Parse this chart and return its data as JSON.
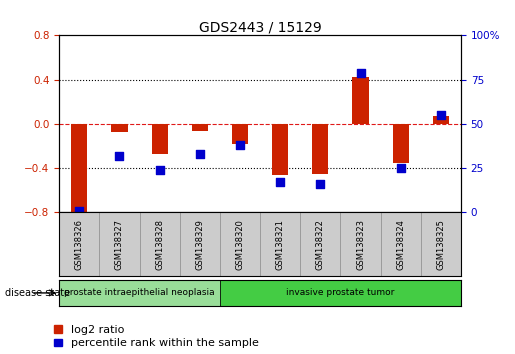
{
  "title": "GDS2443 / 15129",
  "samples": [
    "GSM138326",
    "GSM138327",
    "GSM138328",
    "GSM138329",
    "GSM138320",
    "GSM138321",
    "GSM138322",
    "GSM138323",
    "GSM138324",
    "GSM138325"
  ],
  "log2_ratio": [
    -0.82,
    -0.07,
    -0.27,
    -0.06,
    -0.18,
    -0.46,
    -0.45,
    0.42,
    -0.35,
    0.07
  ],
  "percentile_rank": [
    1,
    32,
    24,
    33,
    38,
    17,
    16,
    79,
    25,
    55
  ],
  "ylim_left": [
    -0.8,
    0.8
  ],
  "ylim_right": [
    0,
    100
  ],
  "yticks_left": [
    -0.8,
    -0.4,
    0,
    0.4,
    0.8
  ],
  "yticks_right": [
    0,
    25,
    50,
    75,
    100
  ],
  "hline_values": [
    -0.4,
    0,
    0.4
  ],
  "bar_color": "#cc2200",
  "dot_color": "#0000cc",
  "disease_groups": [
    {
      "label": "prostate intraepithelial neoplasia",
      "start": 0,
      "end": 4,
      "color": "#99dd99"
    },
    {
      "label": "invasive prostate tumor",
      "start": 4,
      "end": 10,
      "color": "#44cc44"
    }
  ],
  "disease_state_label": "disease state",
  "legend_log2": "log2 ratio",
  "legend_pct": "percentile rank within the sample",
  "bar_width": 0.4,
  "dot_size": 40,
  "title_fontsize": 10,
  "tick_fontsize": 7.5,
  "legend_fontsize": 8,
  "sample_fontsize": 6,
  "label_bg_color": "#cccccc",
  "background_color": "#ffffff",
  "spine_color": "#000000",
  "zero_line_color": "#dd0000"
}
